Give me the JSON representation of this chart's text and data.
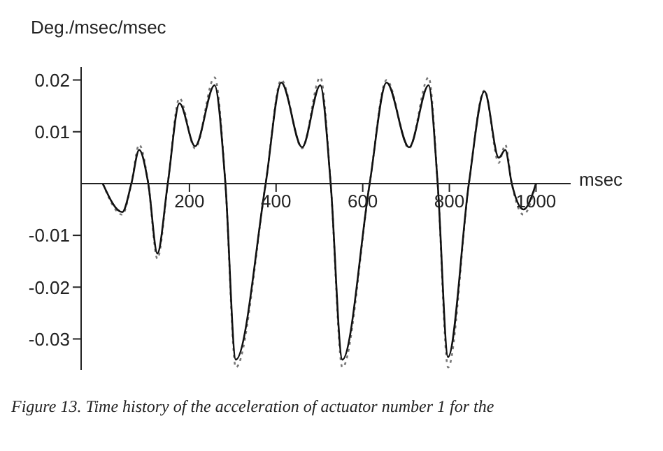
{
  "chart_data": {
    "type": "line",
    "ylabel": "Deg./msec/msec",
    "xlabel": "msec",
    "annotations": [
      "Figure 13. Time history of the acceleration of actuator number 1 for the"
    ],
    "x": [
      0,
      45,
      66,
      84,
      105,
      126,
      150,
      177,
      213,
      258,
      283,
      307,
      376,
      412,
      460,
      502,
      526,
      553,
      616,
      655,
      707,
      752,
      773,
      797,
      845,
      881,
      914,
      929,
      944,
      971,
      1000
    ],
    "series": [
      {
        "color": "#777777",
        "line_style": "dotted",
        "values": [
          0,
          -0.006,
          0,
          0.0075,
          0,
          -0.0145,
          0,
          0.0165,
          0.0068,
          0.0205,
          0,
          -0.0355,
          0,
          0.02,
          0.0068,
          0.0205,
          0,
          -0.0355,
          0,
          0.02,
          0.0068,
          0.0205,
          0,
          -0.0355,
          0,
          0.018,
          0.004,
          0.0075,
          0,
          -0.006,
          0
        ]
      },
      {
        "color": "#111111",
        "line_style": "solid",
        "values": [
          0,
          -0.0055,
          0,
          0.0065,
          0,
          -0.0135,
          0,
          0.0155,
          0.0072,
          0.019,
          0,
          -0.034,
          0,
          0.0195,
          0.007,
          0.019,
          0,
          -0.034,
          0,
          0.0195,
          0.007,
          0.019,
          0,
          -0.0335,
          0,
          0.0178,
          0.005,
          0.0065,
          0,
          -0.005,
          0
        ]
      }
    ],
    "xlim": [
      -50,
      1080
    ],
    "xticks": [
      200,
      400,
      600,
      800,
      1000
    ],
    "ylim": [
      -0.036,
      0.0225
    ],
    "yticks": [
      -0.03,
      -0.02,
      -0.01,
      0.01,
      0.02
    ],
    "grid": false,
    "legend": false,
    "marker": "none"
  }
}
